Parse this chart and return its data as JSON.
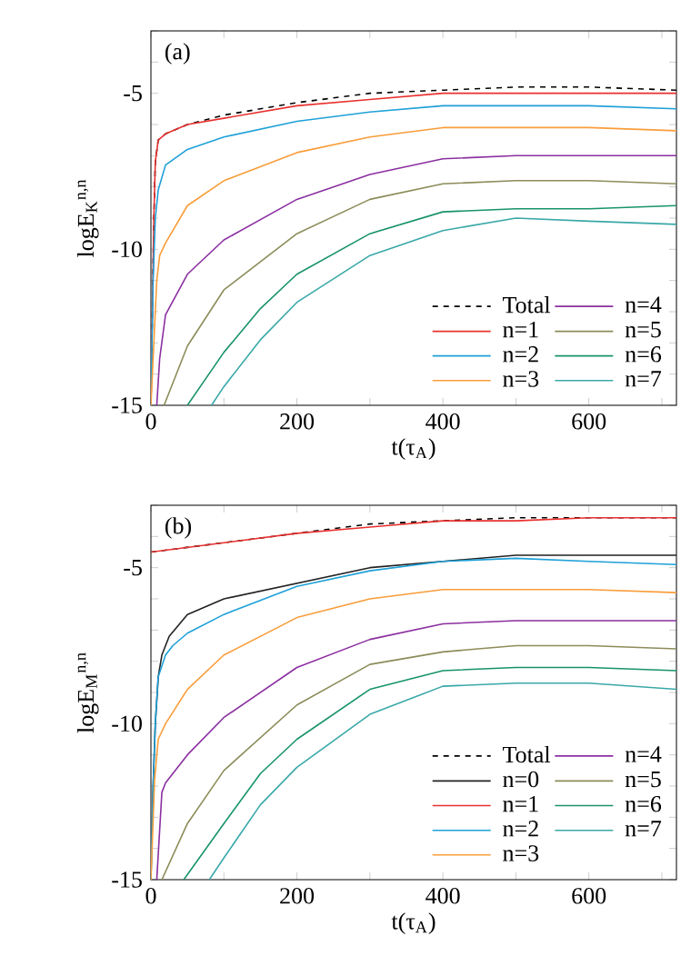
{
  "chart_data": [
    {
      "type": "line",
      "annotations": [
        "(a)"
      ],
      "xlabel": "t(τ$_{A}$)",
      "ylabel": "logE$_{K}$$^{n,n}$",
      "xlim": [
        0,
        720
      ],
      "ylim": [
        -15,
        -3
      ],
      "xticks": [
        0,
        {
          "value": 100,
          "label": null
        },
        200,
        {
          "value": 300,
          "label": null
        },
        400,
        {
          "value": 500,
          "label": null
        },
        600,
        {
          "value": 700,
          "label": null
        }
      ],
      "yticks": [
        -15,
        {
          "value": -14,
          "label": null
        },
        {
          "value": -13,
          "label": null
        },
        {
          "value": -12,
          "label": null
        },
        {
          "value": -11,
          "label": null
        },
        -10,
        {
          "value": -9,
          "label": null
        },
        {
          "value": -8,
          "label": null
        },
        {
          "value": -7,
          "label": null
        },
        {
          "value": -6,
          "label": null
        },
        -5,
        {
          "value": -4,
          "label": null
        },
        {
          "value": -3,
          "label": null
        }
      ],
      "legend": "bottom right",
      "series": [
        {
          "name": "Total",
          "color": "#000000",
          "line_style": "dashed",
          "x": [
            0,
            2,
            4,
            6,
            10,
            20,
            50,
            100,
            200,
            300,
            400,
            500,
            600,
            720
          ],
          "values": [
            -15,
            -12,
            -9,
            -7.2,
            -6.5,
            -6.3,
            -6,
            -5.7,
            -5.3,
            -5,
            -4.9,
            -4.8,
            -4.8,
            -4.9
          ]
        },
        {
          "name": "n=1",
          "color": "#e8312f",
          "line_style": "solid",
          "x": [
            0,
            2,
            4,
            6,
            10,
            20,
            50,
            100,
            200,
            300,
            400,
            500,
            600,
            720
          ],
          "values": [
            -15,
            -12,
            -9,
            -7.2,
            -6.5,
            -6.3,
            -6,
            -5.8,
            -5.4,
            -5.2,
            -5,
            -5,
            -5,
            -5
          ]
        },
        {
          "name": "n=2",
          "color": "#1ea0d8",
          "line_style": "solid",
          "x": [
            0,
            3,
            6,
            10,
            20,
            50,
            100,
            200,
            300,
            400,
            500,
            600,
            720
          ],
          "values": [
            -15,
            -11,
            -9,
            -8.1,
            -7.3,
            -6.8,
            -6.4,
            -5.9,
            -5.6,
            -5.4,
            -5.4,
            -5.4,
            -5.5
          ]
        },
        {
          "name": "n=3",
          "color": "#f99d3a",
          "line_style": "solid",
          "x": [
            0,
            4,
            8,
            12,
            20,
            50,
            100,
            200,
            300,
            400,
            500,
            600,
            720
          ],
          "values": [
            -15,
            -13,
            -11,
            -10.2,
            -9.8,
            -8.6,
            -7.8,
            -6.9,
            -6.4,
            -6.1,
            -6.1,
            -6.1,
            -6.2
          ]
        },
        {
          "name": "n=4",
          "color": "#8b2fa0",
          "line_style": "solid",
          "x": [
            8,
            12,
            20,
            50,
            100,
            200,
            300,
            400,
            500,
            600,
            720
          ],
          "values": [
            -15,
            -13.5,
            -12.1,
            -10.8,
            -9.7,
            -8.4,
            -7.6,
            -7.1,
            -7,
            -7,
            -7
          ]
        },
        {
          "name": "n=5",
          "color": "#8c8c5a",
          "line_style": "solid",
          "x": [
            18,
            50,
            100,
            200,
            300,
            400,
            500,
            600,
            720
          ],
          "values": [
            -15,
            -13.1,
            -11.3,
            -9.5,
            -8.4,
            -7.9,
            -7.8,
            -7.8,
            -7.9
          ]
        },
        {
          "name": "n=6",
          "color": "#18936a",
          "line_style": "solid",
          "x": [
            50,
            100,
            150,
            200,
            300,
            400,
            500,
            600,
            720
          ],
          "values": [
            -15,
            -13.3,
            -11.9,
            -10.8,
            -9.5,
            -8.8,
            -8.7,
            -8.7,
            -8.6
          ]
        },
        {
          "name": "n=7",
          "color": "#3aa8a8",
          "line_style": "solid",
          "x": [
            83,
            100,
            150,
            200,
            300,
            400,
            500,
            600,
            720
          ],
          "values": [
            -15,
            -14.4,
            -12.9,
            -11.7,
            -10.2,
            -9.4,
            -9,
            -9.1,
            -9.2
          ]
        }
      ]
    },
    {
      "type": "line",
      "annotations": [
        "(b)"
      ],
      "xlabel": "t(τ$_{A}$)",
      "ylabel": "logE$_{M}$$^{n,n}$",
      "xlim": [
        0,
        720
      ],
      "ylim": [
        -15,
        -3
      ],
      "xticks": [
        0,
        {
          "value": 100,
          "label": null
        },
        200,
        {
          "value": 300,
          "label": null
        },
        400,
        {
          "value": 500,
          "label": null
        },
        600,
        {
          "value": 700,
          "label": null
        }
      ],
      "yticks": [
        -15,
        {
          "value": -14,
          "label": null
        },
        {
          "value": -13,
          "label": null
        },
        {
          "value": -12,
          "label": null
        },
        {
          "value": -11,
          "label": null
        },
        -10,
        {
          "value": -9,
          "label": null
        },
        {
          "value": -8,
          "label": null
        },
        {
          "value": -7,
          "label": null
        },
        {
          "value": -6,
          "label": null
        },
        -5,
        {
          "value": -4,
          "label": null
        },
        {
          "value": -3,
          "label": null
        }
      ],
      "legend": "bottom right",
      "series": [
        {
          "name": "Total",
          "color": "#000000",
          "line_style": "dashed",
          "x": [
            0,
            100,
            200,
            300,
            400,
            500,
            600,
            720
          ],
          "values": [
            -4.5,
            -4.2,
            -3.9,
            -3.6,
            -3.5,
            -3.4,
            -3.4,
            -3.4
          ]
        },
        {
          "name": "n=0",
          "color": "#222222",
          "line_style": "solid",
          "x": [
            0,
            3,
            6,
            10,
            15,
            25,
            50,
            100,
            200,
            300,
            400,
            500,
            600,
            720
          ],
          "values": [
            -15,
            -12,
            -10,
            -8.5,
            -7.8,
            -7.2,
            -6.5,
            -6,
            -5.5,
            -5,
            -4.8,
            -4.6,
            -4.6,
            -4.6
          ]
        },
        {
          "name": "n=1",
          "color": "#e8312f",
          "line_style": "solid",
          "x": [
            0,
            100,
            200,
            300,
            400,
            500,
            600,
            720
          ],
          "values": [
            -4.5,
            -4.2,
            -3.9,
            -3.7,
            -3.5,
            -3.5,
            -3.4,
            -3.4
          ]
        },
        {
          "name": "n=2",
          "color": "#1ea0d8",
          "line_style": "solid",
          "x": [
            0,
            3,
            6,
            10,
            20,
            30,
            50,
            100,
            200,
            300,
            400,
            500,
            600,
            720
          ],
          "values": [
            -15,
            -12,
            -10,
            -8.5,
            -7.8,
            -7.5,
            -7.1,
            -6.5,
            -5.6,
            -5.1,
            -4.8,
            -4.7,
            -4.8,
            -4.9
          ]
        },
        {
          "name": "n=3",
          "color": "#f99d3a",
          "line_style": "solid",
          "x": [
            0,
            5,
            10,
            20,
            50,
            100,
            200,
            300,
            400,
            500,
            600,
            720
          ],
          "values": [
            -15,
            -11.8,
            -10.5,
            -10,
            -8.9,
            -7.8,
            -6.6,
            -6,
            -5.7,
            -5.7,
            -5.7,
            -5.8
          ]
        },
        {
          "name": "n=4",
          "color": "#8b2fa0",
          "line_style": "solid",
          "x": [
            8,
            15,
            20,
            50,
            100,
            200,
            300,
            400,
            500,
            600,
            720
          ],
          "values": [
            -15,
            -12.2,
            -11.9,
            -11,
            -9.8,
            -8.2,
            -7.3,
            -6.8,
            -6.7,
            -6.7,
            -6.7
          ]
        },
        {
          "name": "n=5",
          "color": "#8c8c5a",
          "line_style": "solid",
          "x": [
            15,
            50,
            100,
            200,
            300,
            400,
            500,
            600,
            720
          ],
          "values": [
            -15,
            -13.2,
            -11.5,
            -9.4,
            -8.1,
            -7.7,
            -7.5,
            -7.5,
            -7.6
          ]
        },
        {
          "name": "n=6",
          "color": "#18936a",
          "line_style": "solid",
          "x": [
            45,
            100,
            150,
            200,
            300,
            400,
            500,
            600,
            720
          ],
          "values": [
            -15,
            -13.2,
            -11.6,
            -10.5,
            -8.9,
            -8.3,
            -8.2,
            -8.2,
            -8.3
          ]
        },
        {
          "name": "n=7",
          "color": "#3aa8a8",
          "line_style": "solid",
          "x": [
            80,
            100,
            150,
            200,
            300,
            400,
            500,
            600,
            720
          ],
          "values": [
            -15,
            -14.3,
            -12.6,
            -11.4,
            -9.7,
            -8.8,
            -8.7,
            -8.7,
            -8.9
          ]
        }
      ]
    }
  ]
}
